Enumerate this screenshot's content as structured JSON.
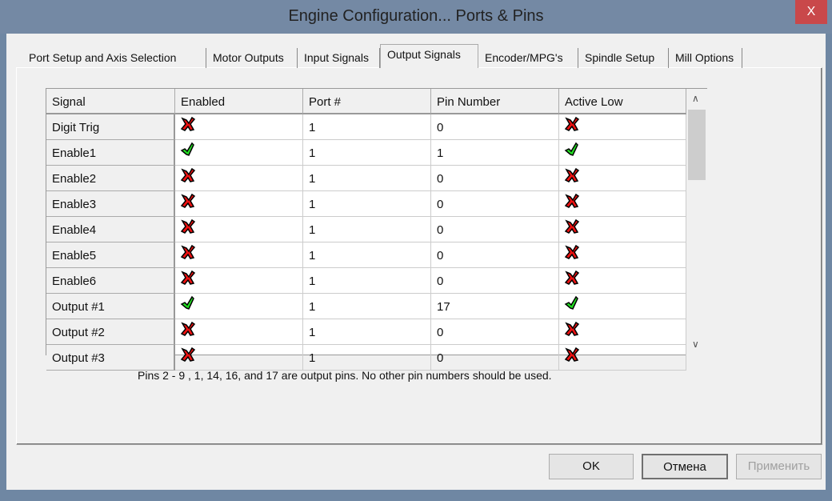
{
  "window": {
    "title": "Engine Configuration... Ports & Pins",
    "close_label": "X"
  },
  "tabs": [
    {
      "label": "Port Setup and Axis Selection"
    },
    {
      "label": "Motor Outputs"
    },
    {
      "label": "Input Signals"
    },
    {
      "label": "Output Signals",
      "active": true
    },
    {
      "label": "Encoder/MPG's"
    },
    {
      "label": "Spindle Setup"
    },
    {
      "label": "Mill Options"
    }
  ],
  "grid": {
    "columns": [
      "Signal",
      "Enabled",
      "Port #",
      "Pin Number",
      "Active Low"
    ],
    "rows": [
      {
        "signal": "Digit  Trig",
        "enabled": false,
        "port": "1",
        "pin": "0",
        "active_low": false
      },
      {
        "signal": "Enable1",
        "enabled": true,
        "port": "1",
        "pin": "1",
        "active_low": true
      },
      {
        "signal": "Enable2",
        "enabled": false,
        "port": "1",
        "pin": "0",
        "active_low": false
      },
      {
        "signal": "Enable3",
        "enabled": false,
        "port": "1",
        "pin": "0",
        "active_low": false
      },
      {
        "signal": "Enable4",
        "enabled": false,
        "port": "1",
        "pin": "0",
        "active_low": false
      },
      {
        "signal": "Enable5",
        "enabled": false,
        "port": "1",
        "pin": "0",
        "active_low": false
      },
      {
        "signal": "Enable6",
        "enabled": false,
        "port": "1",
        "pin": "0",
        "active_low": false
      },
      {
        "signal": "Output #1",
        "enabled": true,
        "port": "1",
        "pin": "17",
        "active_low": true
      },
      {
        "signal": "Output #2",
        "enabled": false,
        "port": "1",
        "pin": "0",
        "active_low": false
      },
      {
        "signal": "Output #3",
        "enabled": false,
        "port": "1",
        "pin": "0",
        "active_low": false
      }
    ],
    "icons": {
      "true": "green-check-icon",
      "false": "red-x-icon"
    },
    "colors": {
      "check": "#22dd22",
      "x": "#ee1111"
    }
  },
  "note": "Pins 2 - 9 , 1, 14, 16, and 17 are output pins. No  other pin numbers should be used.",
  "buttons": {
    "ok": "OK",
    "cancel": "Отмена",
    "apply": "Применить"
  }
}
